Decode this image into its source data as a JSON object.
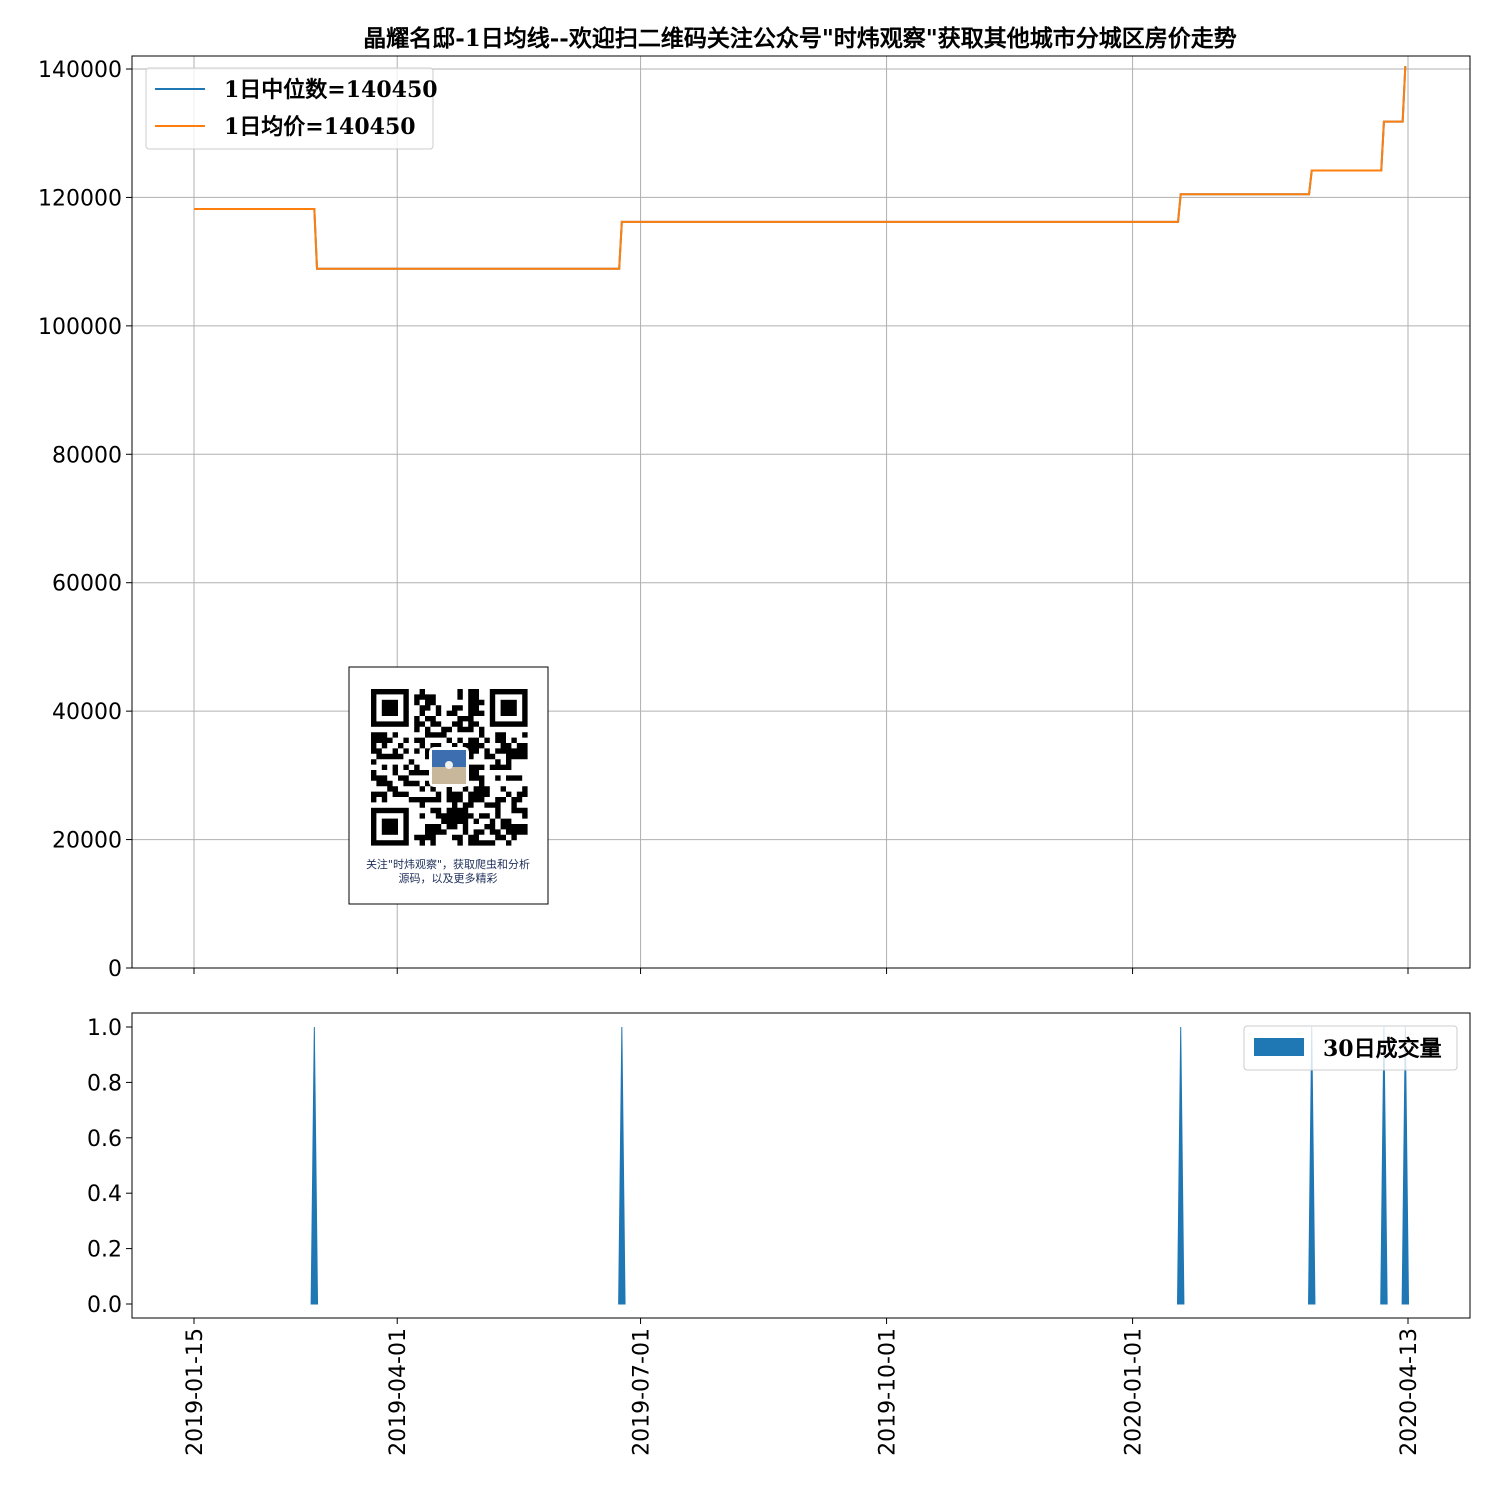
{
  "chart_data": [
    {
      "type": "line",
      "title": "晶耀名邸-1日均线--欢迎扫二维码关注公众号\"时炜观察\"获取其他城市分城区房价走势",
      "xlabel": "",
      "ylabel": "",
      "ylim": [
        0,
        140000
      ],
      "yticks": [
        0,
        20000,
        40000,
        60000,
        80000,
        100000,
        120000,
        140000
      ],
      "grid": true,
      "legend_position": "top-left",
      "series": [
        {
          "name": "1日中位数=140450",
          "color": "#1f77b4",
          "points": [
            {
              "x": "2019-01-15",
              "y": 118200
            },
            {
              "x": "2019-03-01",
              "y": 118200
            },
            {
              "x": "2019-03-02",
              "y": 108900
            },
            {
              "x": "2019-06-23",
              "y": 108900
            },
            {
              "x": "2019-06-24",
              "y": 116200
            },
            {
              "x": "2020-01-18",
              "y": 116200
            },
            {
              "x": "2020-01-19",
              "y": 120500
            },
            {
              "x": "2020-03-07",
              "y": 120500
            },
            {
              "x": "2020-03-08",
              "y": 124200
            },
            {
              "x": "2020-04-03",
              "y": 124200
            },
            {
              "x": "2020-04-04",
              "y": 131800
            },
            {
              "x": "2020-04-11",
              "y": 131800
            },
            {
              "x": "2020-04-12",
              "y": 140450
            }
          ]
        },
        {
          "name": "1日均价=140450",
          "color": "#ff7f0e",
          "points": [
            {
              "x": "2019-01-15",
              "y": 118200
            },
            {
              "x": "2019-03-01",
              "y": 118200
            },
            {
              "x": "2019-03-02",
              "y": 108900
            },
            {
              "x": "2019-06-23",
              "y": 108900
            },
            {
              "x": "2019-06-24",
              "y": 116200
            },
            {
              "x": "2020-01-18",
              "y": 116200
            },
            {
              "x": "2020-01-19",
              "y": 120500
            },
            {
              "x": "2020-03-07",
              "y": 120500
            },
            {
              "x": "2020-03-08",
              "y": 124200
            },
            {
              "x": "2020-04-03",
              "y": 124200
            },
            {
              "x": "2020-04-04",
              "y": 131800
            },
            {
              "x": "2020-04-11",
              "y": 131800
            },
            {
              "x": "2020-04-12",
              "y": 140450
            }
          ]
        }
      ]
    },
    {
      "type": "area",
      "ylim": [
        0,
        1.0
      ],
      "yticks": [
        "0.0",
        "0.2",
        "0.4",
        "0.6",
        "0.8",
        "1.0"
      ],
      "xticks": [
        "2019-01-15",
        "2019-04-01",
        "2019-07-01",
        "2019-10-01",
        "2020-01-01",
        "2020-04-13"
      ],
      "grid": false,
      "legend_position": "top-right",
      "series": [
        {
          "name": "30日成交量",
          "color": "#1f77b4",
          "points": [
            {
              "x": "2019-03-01",
              "y": 1
            },
            {
              "x": "2019-06-24",
              "y": 1
            },
            {
              "x": "2020-01-19",
              "y": 1
            },
            {
              "x": "2020-03-08",
              "y": 1
            },
            {
              "x": "2020-04-04",
              "y": 1
            },
            {
              "x": "2020-04-12",
              "y": 1
            }
          ]
        }
      ]
    }
  ],
  "qr_card": {
    "caption_line1": "关注\"时炜观察\"，获取爬虫和分析",
    "caption_line2": "源码，以及更多精彩"
  }
}
